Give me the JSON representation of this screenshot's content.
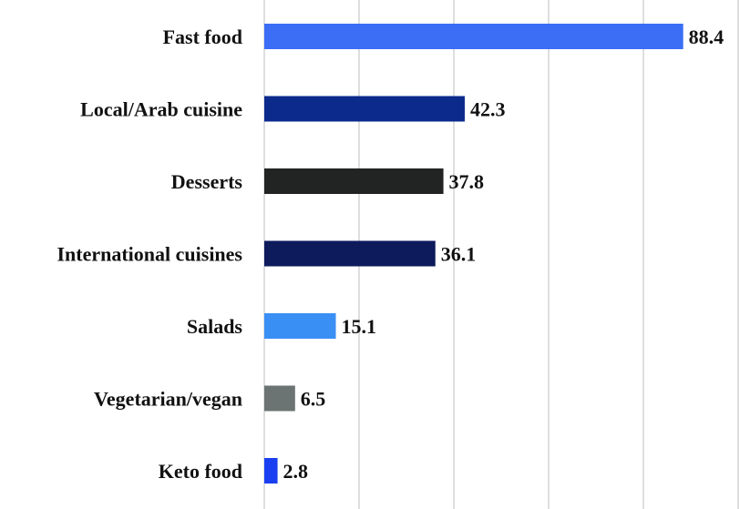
{
  "chart_data": {
    "type": "bar",
    "orientation": "horizontal",
    "title": "",
    "xlabel": "",
    "ylabel": "",
    "xlim": [
      0,
      100
    ],
    "grid": true,
    "legend": "none",
    "bars": [
      {
        "category": "Fast food",
        "value": 88.4,
        "label": "88.4",
        "color": "#3b6ef5"
      },
      {
        "category": "Local/Arab cuisine",
        "value": 42.3,
        "label": "42.3",
        "color": "#0c2a8c"
      },
      {
        "category": "Desserts",
        "value": 37.8,
        "label": "37.8",
        "color": "#222424"
      },
      {
        "category": "International cuisines",
        "value": 36.1,
        "label": "36.1",
        "color": "#0d1a5c"
      },
      {
        "category": "Salads",
        "value": 15.1,
        "label": "15.1",
        "color": "#3a8ff5"
      },
      {
        "category": "Vegetarian/vegan",
        "value": 6.5,
        "label": "6.5",
        "color": "#6b7373"
      },
      {
        "category": "Keto food",
        "value": 2.8,
        "label": "2.8",
        "color": "#1a3ff0"
      }
    ]
  }
}
